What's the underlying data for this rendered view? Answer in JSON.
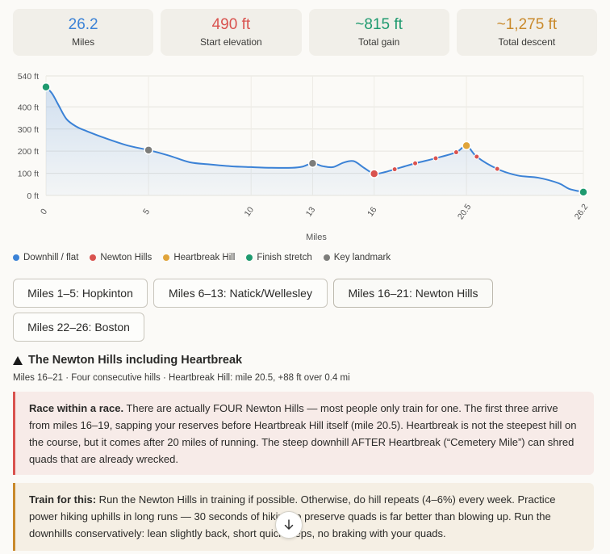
{
  "stats": [
    {
      "value": "26.2",
      "label": "Miles",
      "color": "#3b82d6"
    },
    {
      "value": "490 ft",
      "label": "Start elevation",
      "color": "#d9534f"
    },
    {
      "value": "~815 ft",
      "label": "Total gain",
      "color": "#1f9a6f"
    },
    {
      "value": "~1,275 ft",
      "label": "Total descent",
      "color": "#c98a2c"
    }
  ],
  "chart_data": {
    "type": "line",
    "xlabel": "Miles",
    "ylabel": "",
    "xlim": [
      0,
      26.2
    ],
    "ylim": [
      0,
      540
    ],
    "x_ticks": [
      "0",
      "5",
      "10",
      "13",
      "16",
      "20.5",
      "26.2"
    ],
    "x_tick_values": [
      0,
      5,
      10,
      13,
      16,
      20.5,
      26.2
    ],
    "y_ticks": [
      "0 ft",
      "100 ft",
      "200 ft",
      "300 ft",
      "400 ft",
      "540 ft"
    ],
    "y_tick_values": [
      0,
      100,
      200,
      300,
      400,
      540
    ],
    "series": [
      {
        "name": "Elevation",
        "x": [
          0,
          0.3,
          0.6,
          1,
          1.5,
          2,
          3,
          4,
          5,
          6,
          7,
          8,
          9,
          10,
          11,
          12,
          12.5,
          13,
          13.5,
          14,
          14.5,
          15,
          15.5,
          16,
          16.5,
          17,
          18,
          19,
          20,
          20.5,
          21,
          22,
          23,
          24,
          25,
          25.5,
          26.2
        ],
        "y": [
          490,
          460,
          410,
          345,
          310,
          290,
          255,
          225,
          205,
          180,
          150,
          140,
          132,
          128,
          125,
          125,
          130,
          145,
          132,
          128,
          148,
          155,
          125,
          98,
          105,
          118,
          145,
          168,
          195,
          225,
          175,
          120,
          90,
          80,
          55,
          30,
          15
        ]
      }
    ],
    "markers": [
      {
        "x": 0,
        "y": 490,
        "kind": "finish"
      },
      {
        "x": 5,
        "y": 205,
        "kind": "landmark"
      },
      {
        "x": 13,
        "y": 145,
        "kind": "landmark"
      },
      {
        "x": 16,
        "y": 98,
        "kind": "newton"
      },
      {
        "x": 17,
        "y": 118,
        "kind": "newton-small"
      },
      {
        "x": 18,
        "y": 145,
        "kind": "newton-small"
      },
      {
        "x": 19,
        "y": 168,
        "kind": "newton-small"
      },
      {
        "x": 20,
        "y": 195,
        "kind": "newton-small"
      },
      {
        "x": 20.5,
        "y": 225,
        "kind": "heartbreak"
      },
      {
        "x": 21,
        "y": 175,
        "kind": "newton-small"
      },
      {
        "x": 22,
        "y": 120,
        "kind": "newton-small"
      },
      {
        "x": 26.2,
        "y": 15,
        "kind": "finish"
      }
    ],
    "legend": [
      {
        "label": "Downhill / flat",
        "color": "#3b82d6"
      },
      {
        "label": "Newton Hills",
        "color": "#d9534f"
      },
      {
        "label": "Heartbreak Hill",
        "color": "#e0a43a"
      },
      {
        "label": "Finish stretch",
        "color": "#1f9a6f"
      },
      {
        "label": "Key landmark",
        "color": "#7d7d7a"
      }
    ]
  },
  "tabs": [
    {
      "label": "Miles 1–5: Hopkinton",
      "active": false
    },
    {
      "label": "Miles 6–13: Natick/Wellesley",
      "active": false
    },
    {
      "label": "Miles 16–21: Newton Hills",
      "active": true
    },
    {
      "label": "Miles 22–26: Boston",
      "active": false
    }
  ],
  "section": {
    "title": "The Newton Hills including Heartbreak",
    "subtitle": "Miles 16–21 · Four consecutive hills · Heartbreak Hill: mile 20.5, +88 ft over 0.4 mi"
  },
  "callouts": {
    "race": {
      "lead": "Race within a race.",
      "text": " There are actually FOUR Newton Hills — most people only train for one. The first three arrive from miles 16–19, sapping your reserves before Heartbreak Hill itself (mile 20.5). Heartbreak is not the steepest hill on the course, but it comes after 20 miles of running. The steep downhill AFTER Heartbreak (“Cemetery Mile”) can shred quads that are already wrecked."
    },
    "train": {
      "lead": "Train for this:",
      "text": " Run the Newton Hills in training if possible. Otherwise, do hill repeats (4–6%) every week. Practice power hiking uphills in long runs — 30 seconds of hiking to preserve quads is far better than blowing up. Run the downhills conservatively: lean slightly back, short quick steps, no braking with your quads."
    }
  },
  "icons": {
    "section": "triangle-icon",
    "scroll": "arrow-down-icon"
  }
}
